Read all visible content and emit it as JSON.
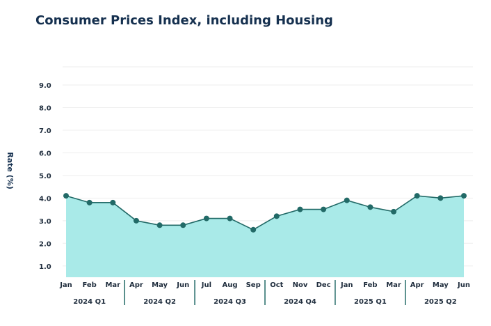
{
  "chart_data": {
    "type": "area",
    "title": "Consumer Prices Index, including Housing",
    "ylabel": "Rate (%)",
    "xlabel": "",
    "ylim": [
      0.5,
      9.8
    ],
    "yticks": [
      "1.0",
      "2.0",
      "3.0",
      "4.0",
      "5.0",
      "6.0",
      "7.0",
      "8.0",
      "9.0"
    ],
    "categories": [
      "Jan",
      "Feb",
      "Mar",
      "Apr",
      "May",
      "Jun",
      "Jul",
      "Aug",
      "Sep",
      "Oct",
      "Nov",
      "Dec",
      "Jan",
      "Feb",
      "Mar",
      "Apr",
      "May",
      "Jun"
    ],
    "quarters": [
      "2024 Q1",
      "2024 Q2",
      "2024 Q3",
      "2024 Q4",
      "2025 Q1",
      "2025 Q2"
    ],
    "series": [
      {
        "name": "Consumer Prices Index, including Housing",
        "values": [
          4.1,
          3.8,
          3.8,
          3.0,
          2.8,
          2.8,
          3.1,
          3.1,
          2.6,
          3.2,
          3.5,
          3.5,
          3.9,
          3.6,
          3.4,
          4.1,
          4.0,
          4.1
        ]
      }
    ],
    "colors": {
      "line": "#226a67",
      "fill": "#a9eae8",
      "marker": "#226a67",
      "grid": "#eeeeee",
      "divider": "#226a67"
    }
  }
}
